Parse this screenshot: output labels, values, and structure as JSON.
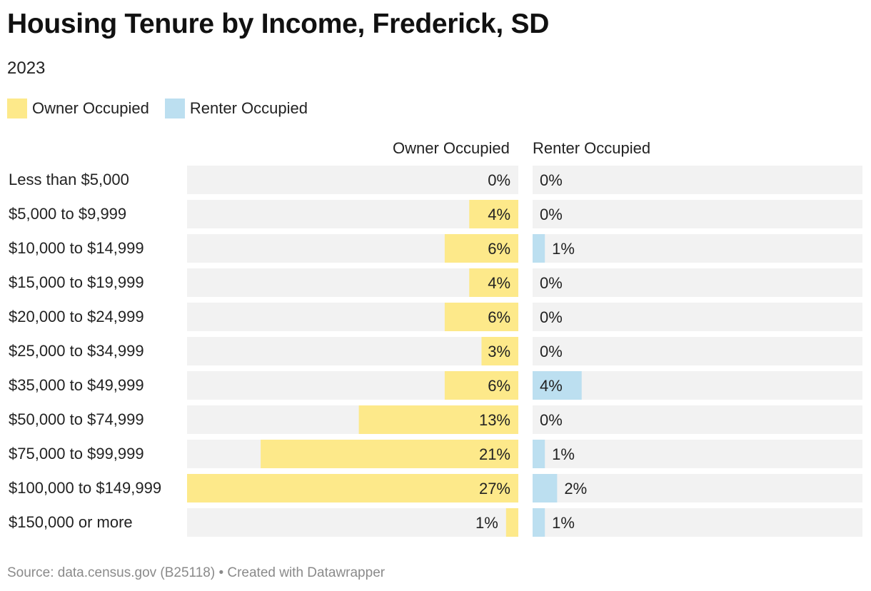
{
  "title": "Housing Tenure by Income, Frederick, SD",
  "subtitle": "2023",
  "legend": [
    {
      "label": "Owner Occupied",
      "color": "#fde98a"
    },
    {
      "label": "Renter Occupied",
      "color": "#bcdff0"
    }
  ],
  "source": "Source: data.census.gov (B25118) • Created with Datawrapper",
  "chart_data": {
    "type": "bar",
    "orientation": "horizontal",
    "categories": [
      "Less than $5,000",
      "$5,000 to $9,999",
      "$10,000 to $14,999",
      "$15,000 to $19,999",
      "$20,000 to $24,999",
      "$25,000 to $34,999",
      "$35,000 to $49,999",
      "$50,000 to $74,999",
      "$75,000 to $99,999",
      "$100,000 to $149,999",
      "$150,000 or more"
    ],
    "series": [
      {
        "name": "Owner Occupied",
        "values": [
          0,
          4,
          6,
          4,
          6,
          3,
          6,
          13,
          21,
          27,
          1
        ],
        "labels": [
          "0%",
          "4%",
          "6%",
          "4%",
          "6%",
          "3%",
          "6%",
          "13%",
          "21%",
          "27%",
          "1%"
        ],
        "color": "#fde98a"
      },
      {
        "name": "Renter Occupied",
        "values": [
          0,
          0,
          1,
          0,
          0,
          0,
          4,
          0,
          1,
          2,
          1
        ],
        "labels": [
          "0%",
          "0%",
          "1%",
          "0%",
          "0%",
          "0%",
          "4%",
          "0%",
          "1%",
          "2%",
          "1%"
        ],
        "color": "#bcdff0"
      }
    ],
    "xlim": [
      0,
      27
    ],
    "background_color": "#f2f2f2"
  }
}
